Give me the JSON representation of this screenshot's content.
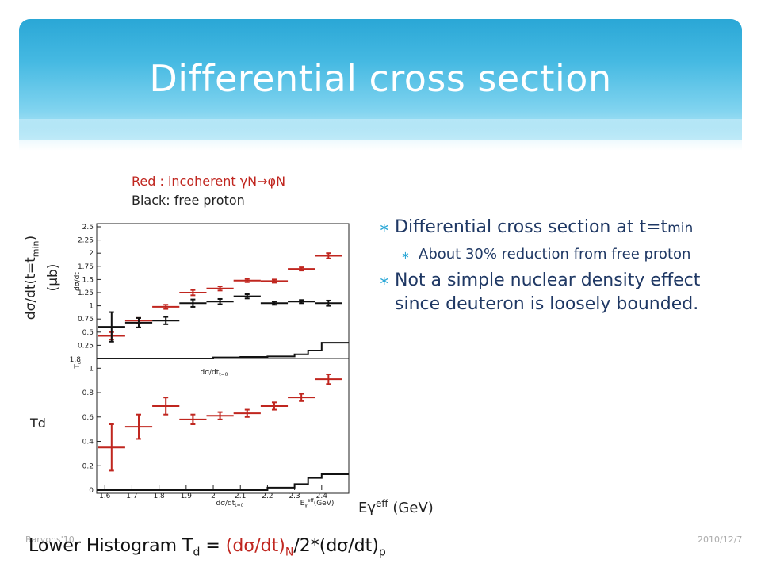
{
  "slide": {
    "title": "Differential cross section",
    "legend_red": "Red : incoherent γN→φN",
    "legend_black": "Black: free proton",
    "ylabel_main": "dσ/dt(t=t",
    "ylabel_sub": "min",
    "ylabel_close": ")",
    "ylabel_unit": "(μb)",
    "td_label": "Td",
    "x_label_main": "Eγ",
    "x_label_sup": "eff",
    "x_label_unit": " (GeV)",
    "bullet1_main": "Differential cross section at t=t",
    "bullet1_sub": "min",
    "bullet1_child": "About 30% reduction from free proton",
    "bullet2": "Not a simple nuclear density effect since deuteron is loosely bounded.",
    "footer_left": "Baryons'10",
    "footer_right": "2010/12/7",
    "lower_eq": {
      "prefix": "Lower Histogram T",
      "prefix_sub": "d",
      "eq": " = ",
      "num": "(dσ/dt)",
      "num_sub": "N",
      "mid": "/2*(dσ/dt)",
      "den_sub": "p"
    },
    "colors": {
      "banner": "#2aa7d6",
      "red": "#c0261f",
      "bullet_text": "#1f3864"
    }
  },
  "chart_data": [
    {
      "type": "scatter",
      "panel": "upper",
      "ylabel_inplot": "dσ/dt",
      "xlim": [
        1.57,
        2.5
      ],
      "ylim": [
        0,
        2.5
      ],
      "yticks": [
        0.25,
        0.5,
        0.75,
        1,
        1.25,
        1.5,
        1.75,
        2,
        2.25,
        2.5
      ],
      "ytick_labels": [
        "0.25",
        "0.5",
        "0.75",
        "1",
        "1.25",
        "1.5",
        "1.75",
        "2",
        "2.25",
        "2.5"
      ],
      "series": [
        {
          "color": "#c0261f",
          "x": [
            1.625,
            1.725,
            1.825,
            1.925,
            2.025,
            2.125,
            2.225,
            2.325,
            2.425
          ],
          "xerr": 0.05,
          "y": [
            0.43,
            0.72,
            0.98,
            1.25,
            1.33,
            1.48,
            1.47,
            1.7,
            1.95
          ],
          "yerr": [
            0.07,
            0.05,
            0.04,
            0.05,
            0.04,
            0.03,
            0.03,
            0.03,
            0.05
          ]
        },
        {
          "color": "#111111",
          "x": [
            1.625,
            1.725,
            1.825,
            1.925,
            2.025,
            2.125,
            2.225,
            2.325,
            2.425
          ],
          "xerr": 0.05,
          "y": [
            0.6,
            0.68,
            0.72,
            1.05,
            1.08,
            1.18,
            1.05,
            1.08,
            1.05
          ],
          "yerr": [
            0.28,
            0.09,
            0.07,
            0.07,
            0.05,
            0.04,
            0.03,
            0.03,
            0.05
          ]
        }
      ],
      "histogram": {
        "edges": [
          1.57,
          1.9,
          2.0,
          2.1,
          2.2,
          2.3,
          2.35,
          2.4,
          2.5
        ],
        "values": [
          0,
          0,
          0.02,
          0.03,
          0.04,
          0.08,
          0.15,
          0.3
        ]
      }
    },
    {
      "type": "scatter",
      "panel": "lower",
      "ylabel_inplot": "T",
      "ylabel_inplot_sub": "d",
      "title_inplot": "dσ/dt",
      "title_inplot_sub": "t=0",
      "xlabel_inplot": "dσ/dt",
      "xlabel_inplot_sub": "t=0",
      "xlabel_inplot_right": "E",
      "xlabel_inplot_right_sub": "γ",
      "xlabel_inplot_right_sup": "eff",
      "xlabel_inplot_right_unit": "(GeV)",
      "xlim": [
        1.57,
        2.5
      ],
      "ylim": [
        0,
        1.08
      ],
      "xticks": [
        1.6,
        1.7,
        1.8,
        1.9,
        2.0,
        2.1,
        2.2,
        2.3,
        2.4
      ],
      "xtick_labels": [
        "1.6",
        "1.7",
        "1.8",
        "1.9",
        "2",
        "2.1",
        "2.2",
        "2.3",
        "2.4"
      ],
      "yticks": [
        0,
        0.2,
        0.4,
        0.6,
        0.8,
        1
      ],
      "ytick_labels": [
        "0",
        "0.2",
        "0.4",
        "0.6",
        "0.8",
        "1"
      ],
      "upper_tick_label": "1.8",
      "series": [
        {
          "color": "#c0261f",
          "x": [
            1.625,
            1.725,
            1.825,
            1.925,
            2.025,
            2.125,
            2.225,
            2.325,
            2.425
          ],
          "xerr": 0.05,
          "y": [
            0.35,
            0.52,
            0.69,
            0.58,
            0.61,
            0.63,
            0.69,
            0.76,
            0.91
          ],
          "yerr": [
            0.19,
            0.1,
            0.07,
            0.04,
            0.03,
            0.03,
            0.03,
            0.03,
            0.04
          ]
        }
      ],
      "histogram": {
        "edges": [
          1.57,
          2.2,
          2.3,
          2.35,
          2.4,
          2.5
        ],
        "values": [
          0,
          0.02,
          0.05,
          0.1,
          0.13
        ]
      }
    }
  ]
}
